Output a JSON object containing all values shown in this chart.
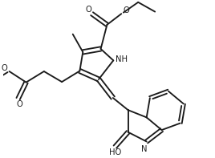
{
  "bg": "#ffffff",
  "lc": "#1a1a1a",
  "lw": 1.35,
  "fw": 2.68,
  "fh": 1.97,
  "dpi": 100,
  "xlim": [
    0,
    10
  ],
  "ylim": [
    0,
    7.4
  ]
}
